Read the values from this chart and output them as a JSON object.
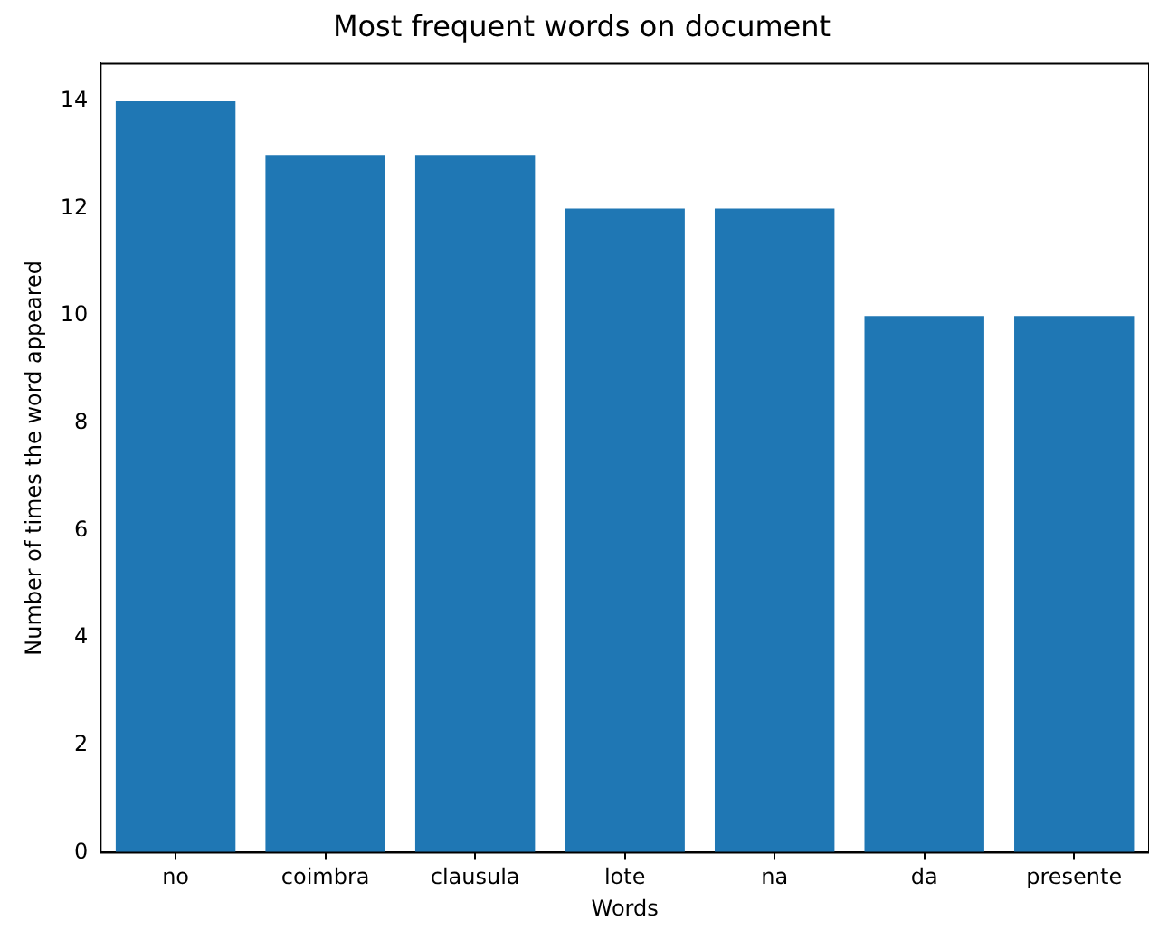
{
  "chart_data": {
    "type": "bar",
    "title": "Most frequent words on document",
    "xlabel": "Words",
    "ylabel": "Number of times the word appeared",
    "categories": [
      "no",
      "coimbra",
      "clausula",
      "lote",
      "na",
      "da",
      "presente"
    ],
    "values": [
      14,
      13,
      13,
      12,
      12,
      10,
      10
    ],
    "color": "#1f77b4",
    "ylim": [
      0,
      14.7
    ],
    "yticks": [
      0,
      2,
      4,
      6,
      8,
      10,
      12,
      14
    ],
    "grid": false
  }
}
